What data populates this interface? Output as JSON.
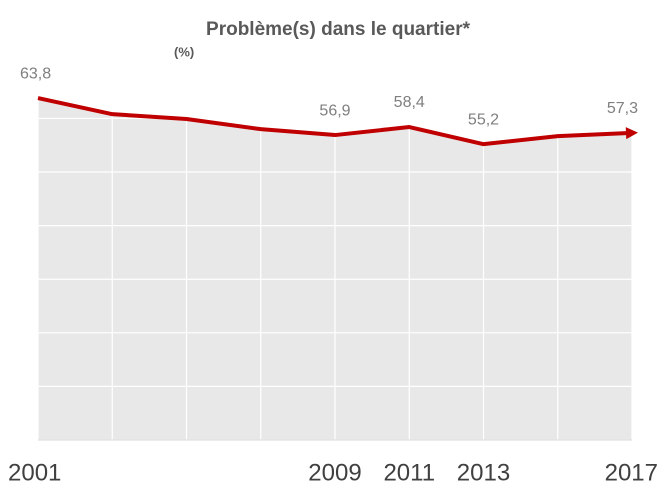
{
  "chart_data": {
    "type": "line",
    "title": "Problème(s) dans le quartier*",
    "subtitle": "(%)",
    "categories": [
      "2001",
      null,
      null,
      null,
      "2009",
      "2011",
      "2013",
      null,
      "2017"
    ],
    "series": [
      {
        "color": "#c00000",
        "values": [
          63.8,
          60.8,
          59.9,
          58.0,
          56.9,
          58.4,
          55.2,
          56.7,
          57.3
        ],
        "value_labels": [
          "63,8",
          null,
          null,
          null,
          "56,9",
          "58,4",
          "55,2",
          null,
          "57,3"
        ]
      }
    ],
    "ylim": [
      0,
      64
    ],
    "yticks": [
      0,
      10,
      20,
      30,
      40,
      50,
      60
    ],
    "grid": true,
    "area_color": "#e8e8e8"
  }
}
